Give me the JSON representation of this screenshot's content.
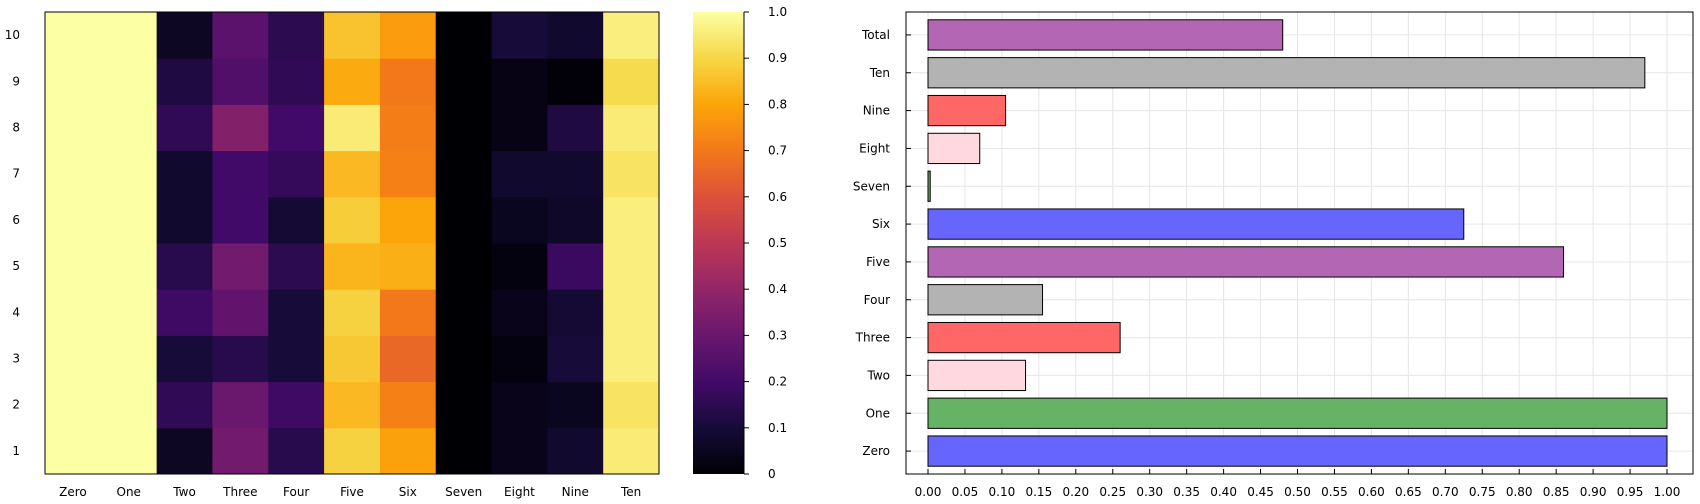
{
  "chart_data": [
    {
      "type": "heatmap",
      "x_categories": [
        "Zero",
        "One",
        "Two",
        "Three",
        "Four",
        "Five",
        "Six",
        "Seven",
        "Eight",
        "Nine",
        "Ten"
      ],
      "y_categories": [
        "1",
        "2",
        "3",
        "4",
        "5",
        "6",
        "7",
        "8",
        "9",
        "10"
      ],
      "values": [
        [
          1.0,
          1.0,
          0.06,
          0.32,
          0.14,
          0.89,
          0.79,
          0.0,
          0.04,
          0.08,
          0.95
        ],
        [
          1.0,
          1.0,
          0.16,
          0.3,
          0.19,
          0.84,
          0.72,
          0.0,
          0.04,
          0.05,
          0.93
        ],
        [
          1.0,
          1.0,
          0.1,
          0.14,
          0.1,
          0.87,
          0.66,
          0.0,
          0.02,
          0.1,
          0.96
        ],
        [
          1.0,
          1.0,
          0.19,
          0.28,
          0.1,
          0.89,
          0.7,
          0.0,
          0.04,
          0.09,
          0.96
        ],
        [
          1.0,
          1.0,
          0.14,
          0.32,
          0.15,
          0.83,
          0.82,
          0.0,
          0.02,
          0.18,
          0.96
        ],
        [
          1.0,
          1.0,
          0.08,
          0.2,
          0.09,
          0.88,
          0.8,
          0.0,
          0.05,
          0.07,
          0.96
        ],
        [
          1.0,
          1.0,
          0.08,
          0.2,
          0.17,
          0.84,
          0.72,
          0.0,
          0.08,
          0.08,
          0.93
        ],
        [
          1.0,
          1.0,
          0.16,
          0.36,
          0.2,
          0.95,
          0.71,
          0.0,
          0.03,
          0.12,
          0.95
        ],
        [
          1.0,
          1.0,
          0.12,
          0.24,
          0.16,
          0.81,
          0.7,
          0.0,
          0.03,
          0.01,
          0.91
        ],
        [
          1.0,
          1.0,
          0.06,
          0.26,
          0.15,
          0.86,
          0.78,
          0.0,
          0.1,
          0.08,
          0.96
        ]
      ],
      "colorbar": {
        "scale": "inferno",
        "range": [
          0,
          1
        ],
        "ticks": [
          "0",
          "0.1",
          "0.2",
          "0.3",
          "0.4",
          "0.5",
          "0.6",
          "0.7",
          "0.8",
          "0.9",
          "1.0"
        ]
      }
    },
    {
      "type": "bar",
      "orientation": "horizontal",
      "categories": [
        "Zero",
        "One",
        "Two",
        "Three",
        "Four",
        "Five",
        "Six",
        "Seven",
        "Eight",
        "Nine",
        "Ten",
        "Total"
      ],
      "values": [
        1.0,
        1.0,
        0.132,
        0.26,
        0.155,
        0.86,
        0.725,
        0.003,
        0.07,
        0.105,
        0.97,
        0.48
      ],
      "colors": [
        "#6666ff",
        "#66b366",
        "#ffd9df",
        "#ff6666",
        "#b3b3b3",
        "#b366b3",
        "#6666ff",
        "#66b366",
        "#ffd9df",
        "#ff6666",
        "#b3b3b3",
        "#b366b3"
      ],
      "xlim": [
        0,
        1.0
      ],
      "xticks": [
        "0.00",
        "0.05",
        "0.10",
        "0.15",
        "0.20",
        "0.25",
        "0.30",
        "0.35",
        "0.40",
        "0.45",
        "0.50",
        "0.55",
        "0.60",
        "0.65",
        "0.70",
        "0.75",
        "0.80",
        "0.85",
        "0.90",
        "0.95",
        "1.00"
      ],
      "grid": true
    }
  ]
}
